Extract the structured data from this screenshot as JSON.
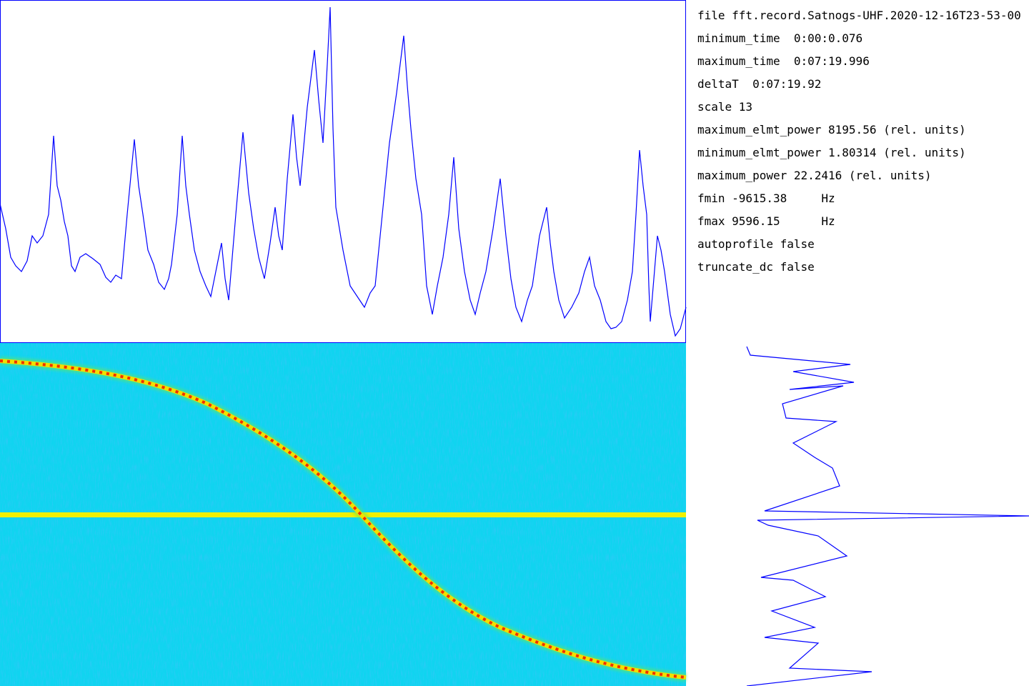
{
  "info": {
    "lines": [
      "file fft.record.Satnogs-UHF.2020-12-16T23-53-00",
      "minimum_time  0:00:0.076",
      "maximum_time  0:07:19.996",
      "deltaT  0:07:19.92",
      "scale 13",
      "maximum_elmt_power 8195.56 (rel. units)",
      "minimum_elmt_power 1.80314 (rel. units)",
      "maximum_power 22.2416 (rel. units)",
      "fmin -9615.38     Hz",
      "fmax 9596.15      Hz",
      "autoprofile false",
      "truncate_dc false"
    ]
  }
}
